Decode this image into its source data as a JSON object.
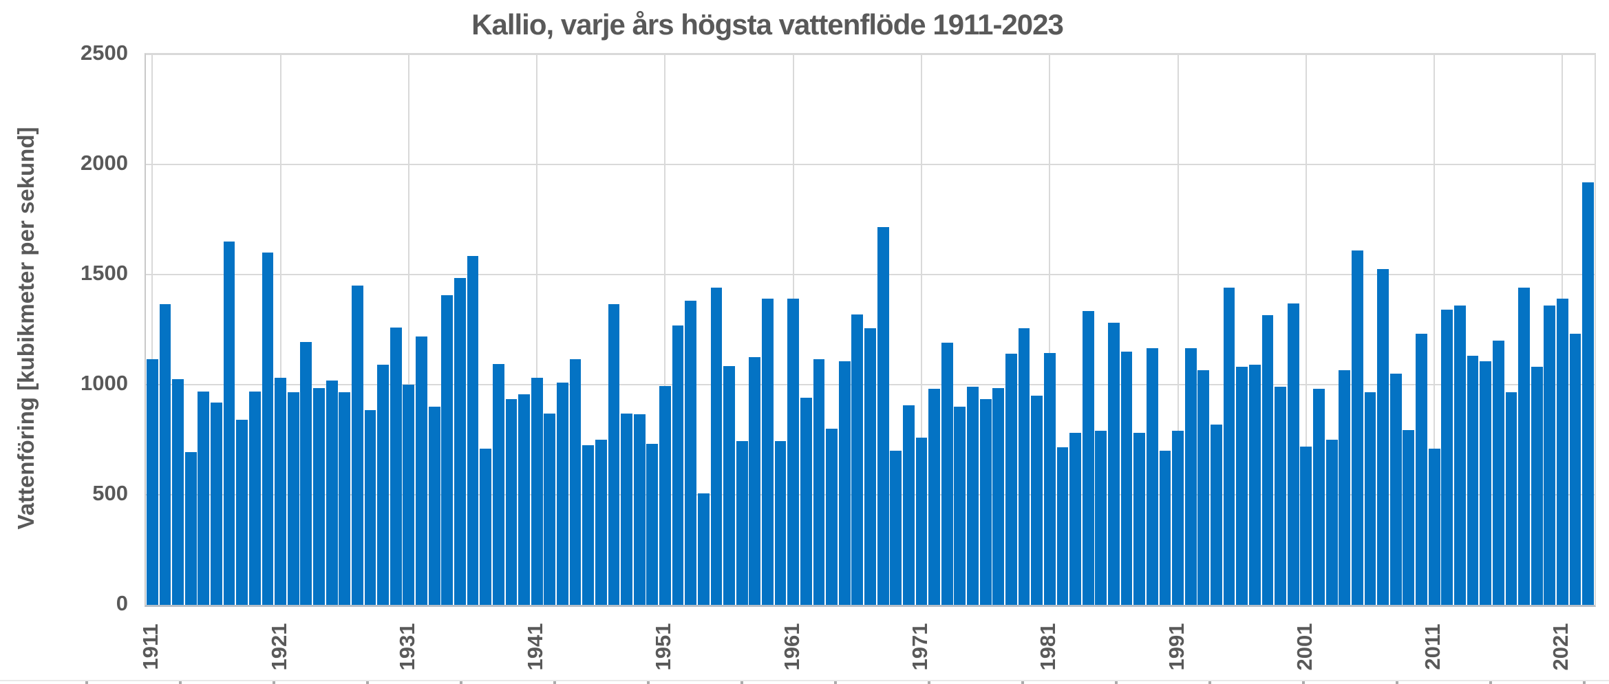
{
  "chart_data": {
    "type": "bar",
    "title": "Kallio, varje års högsta vattenflöde 1911-2023",
    "ylabel": "Vattenföring [kubikmeter per sekund]",
    "xlabel": "",
    "ylim": [
      0,
      2500
    ],
    "yticks": [
      0,
      500,
      1000,
      1500,
      2000,
      2500
    ],
    "xtick_years": [
      1911,
      1921,
      1931,
      1941,
      1951,
      1961,
      1971,
      1981,
      1991,
      2001,
      2011,
      2021
    ],
    "grid": "both",
    "legend": "none",
    "bar_color": "#0473C4",
    "text_color": "#595959",
    "gridline_color": "#D9D9D9",
    "categories": [
      1911,
      1912,
      1913,
      1914,
      1915,
      1916,
      1917,
      1918,
      1919,
      1920,
      1921,
      1922,
      1923,
      1924,
      1925,
      1926,
      1927,
      1928,
      1929,
      1930,
      1931,
      1932,
      1933,
      1934,
      1935,
      1936,
      1937,
      1938,
      1939,
      1940,
      1941,
      1942,
      1943,
      1944,
      1945,
      1946,
      1947,
      1948,
      1949,
      1950,
      1951,
      1952,
      1953,
      1954,
      1955,
      1956,
      1957,
      1958,
      1959,
      1960,
      1961,
      1962,
      1963,
      1964,
      1965,
      1966,
      1967,
      1968,
      1969,
      1970,
      1971,
      1972,
      1973,
      1974,
      1975,
      1976,
      1977,
      1978,
      1979,
      1980,
      1981,
      1982,
      1983,
      1984,
      1985,
      1986,
      1987,
      1988,
      1989,
      1990,
      1991,
      1992,
      1993,
      1994,
      1995,
      1996,
      1997,
      1998,
      1999,
      2000,
      2001,
      2002,
      2003,
      2004,
      2005,
      2006,
      2007,
      2008,
      2009,
      2010,
      2011,
      2012,
      2013,
      2014,
      2015,
      2016,
      2017,
      2018,
      2019,
      2020,
      2021,
      2022,
      2023
    ],
    "values": [
      1115,
      1365,
      1025,
      695,
      970,
      920,
      1650,
      840,
      970,
      1600,
      1030,
      965,
      1195,
      985,
      1020,
      965,
      1450,
      885,
      1090,
      1260,
      1000,
      1220,
      900,
      1405,
      1485,
      1585,
      710,
      1095,
      935,
      955,
      1030,
      870,
      1010,
      1115,
      725,
      750,
      1365,
      870,
      865,
      730,
      995,
      1270,
      1380,
      505,
      1440,
      1085,
      745,
      1125,
      1390,
      745,
      1390,
      940,
      1115,
      800,
      1105,
      1320,
      1255,
      1715,
      700,
      905,
      760,
      980,
      1190,
      900,
      990,
      935,
      985,
      1140,
      1255,
      950,
      1145,
      715,
      780,
      1335,
      790,
      1280,
      1150,
      780,
      1165,
      700,
      790,
      1165,
      1065,
      820,
      1440,
      1080,
      1090,
      1315,
      990,
      1370,
      720,
      980,
      750,
      1065,
      1610,
      965,
      1525,
      1050,
      795,
      1230,
      710,
      1340,
      1360,
      1130,
      1105,
      1200,
      965,
      1440,
      1080,
      1360,
      1390,
      1230,
      1920
    ]
  }
}
